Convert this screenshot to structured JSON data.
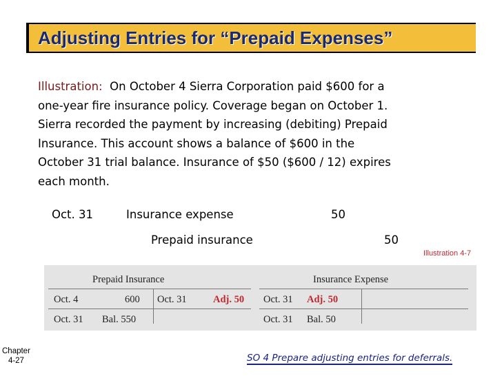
{
  "title": "Adjusting Entries for “Prepaid Expenses”",
  "illustration": {
    "label": "Illustration:",
    "line1": "On October 4 Sierra Corporation paid $600 for a",
    "line2": "one-year fire insurance policy. Coverage began on October 1.",
    "line3": "Sierra recorded the payment by increasing (debiting) Prepaid",
    "line4": "Insurance. This account shows a balance of $600 in the",
    "line5": "October 31 trial balance.  Insurance of $50 ($600 / 12) expires",
    "line6": "each month."
  },
  "journal_entry": {
    "date": "Oct. 31",
    "debit_account": "Insurance expense",
    "debit_amount": "50",
    "credit_account": "Prepaid insurance",
    "credit_amount": "50"
  },
  "illustration_ref": "Illustration 4-7",
  "t_accounts": {
    "prepaid": {
      "title": "Prepaid Insurance",
      "debit_row1_date": "Oct.   4",
      "debit_row1_amount": "600",
      "credit_row1_date": "Oct. 31",
      "credit_row1_amount": "Adj. 50",
      "debit_row2_date": "Oct. 31",
      "debit_row2_amount": "Bal. 550"
    },
    "expense": {
      "title": "Insurance Expense",
      "debit_row1_date": "Oct. 31",
      "debit_row1_amount": "Adj. 50",
      "debit_row2_date": "Oct. 31",
      "debit_row2_amount": "Bal.   50"
    }
  },
  "footer": {
    "chapter_label": "Chapter",
    "chapter_number": "4-27",
    "objective": "SO 4  Prepare adjusting entries for deferrals."
  }
}
